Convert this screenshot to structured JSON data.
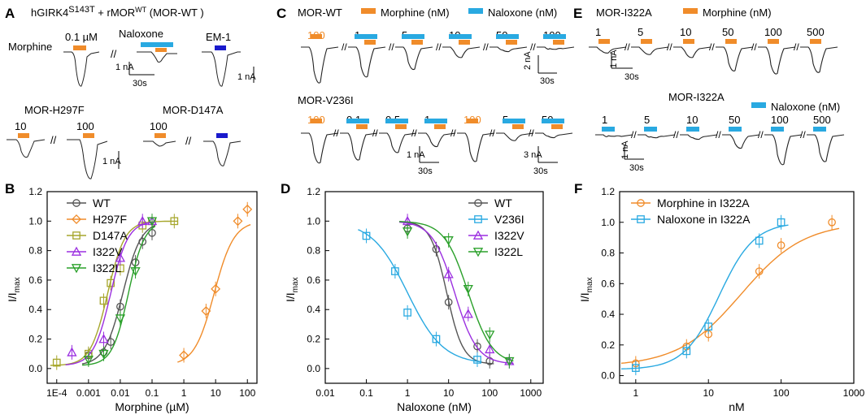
{
  "colors": {
    "orange": "#f08c2a",
    "blue": "#29a9e1",
    "darkblue": "#1a1acc",
    "gray": "#555555",
    "olive": "#a6a62b",
    "purple": "#9b2fe0",
    "green": "#2aa02a",
    "trace": "#222222"
  },
  "panel_a": {
    "letter": "A",
    "title_main": "hGIRK4",
    "title_sup1": "S143T",
    "title_mid": " + rMOR",
    "title_sup2": "WT",
    "title_end": "  (MOR-WT )",
    "morphine": "Morphine",
    "conc_morphine": "0.1 µM",
    "naloxone": "Naloxone",
    "em1": "EM-1",
    "scale_i": "1 nA",
    "scale_t": "30s",
    "scale_i2": "1 nA",
    "h297f": "MOR-H297F",
    "h297f_c1": "10",
    "h297f_c2": "100",
    "d147a": "MOR-D147A",
    "d147a_c1": "100",
    "scale_i3": "1 nA",
    "breaks": "//"
  },
  "panel_c": {
    "letter": "C",
    "wt": "MOR-WT",
    "morphine_legend": "Morphine (nM)",
    "naloxone_legend": "Naloxone (nM)",
    "wt_concs": [
      "100",
      "1",
      "5",
      "10",
      "50",
      "100"
    ],
    "scale_i": "2 nA",
    "scale_t": "30s",
    "v236i": "MOR-V236I",
    "v_concs": [
      "100",
      "0.1",
      "0.5",
      "1",
      "100",
      "5",
      "50"
    ],
    "scale_i2": "1 nA",
    "scale_t2": "30s",
    "scale_i3": "3 nA",
    "scale_t3": "30s"
  },
  "panel_e": {
    "letter": "E",
    "i322a": "MOR-I322A",
    "morphine_legend": "Morphine (nM)",
    "m_concs": [
      "1",
      "5",
      "10",
      "50",
      "100",
      "500"
    ],
    "scale_i": "1 nA",
    "scale_t": "30s",
    "i322a_2": "MOR-I322A",
    "naloxone_legend": "Naloxone (nM)",
    "n_concs": [
      "1",
      "5",
      "10",
      "50",
      "100",
      "500"
    ],
    "scale_i2": "1 nA",
    "scale_t2": "30s"
  },
  "chart_data": [
    {
      "panel": "B",
      "type": "scatter",
      "xscale": "log",
      "xlabel": "Morphine (µM)",
      "ylabel_main": "I/I",
      "ylabel_sub": "max",
      "xlim": [
        5e-05,
        200
      ],
      "ylim": [
        -0.1,
        1.2
      ],
      "xticks": [
        "1E-4",
        "0.001",
        "0.01",
        "0.1",
        "1",
        "10",
        "100"
      ],
      "yticks": [
        "0.0",
        "0.2",
        "0.4",
        "0.6",
        "0.8",
        "1.0",
        "1.2"
      ],
      "series": [
        {
          "name": "WT",
          "marker": "circle",
          "color": "gray",
          "x": [
            0.001,
            0.003,
            0.005,
            0.01,
            0.03,
            0.05,
            0.1
          ],
          "y": [
            0.09,
            0.11,
            0.18,
            0.42,
            0.72,
            0.86,
            0.92
          ],
          "ec50": 0.012,
          "hill": 1.5
        },
        {
          "name": "H297F",
          "marker": "diamond",
          "color": "orange",
          "x": [
            1,
            5,
            10,
            50,
            100
          ],
          "y": [
            0.09,
            0.39,
            0.54,
            1.0,
            1.08
          ],
          "ec50": 9,
          "hill": 1.4
        },
        {
          "name": "D147A",
          "marker": "square",
          "color": "olive",
          "x": [
            0.0001,
            0.001,
            0.003,
            0.005,
            0.01,
            0.05,
            0.1,
            0.5
          ],
          "y": [
            0.04,
            0.1,
            0.46,
            0.58,
            0.68,
            0.97,
            1.0,
            1.0
          ],
          "ec50": 0.004,
          "hill": 1.6
        },
        {
          "name": "I322V",
          "marker": "triangle-up",
          "color": "purple",
          "x": [
            0.0003,
            0.003,
            0.01,
            0.05,
            0.1
          ],
          "y": [
            0.11,
            0.2,
            0.75,
            1.0,
            1.0
          ],
          "ec50": 0.005,
          "hill": 1.6
        },
        {
          "name": "I322L",
          "marker": "triangle-down",
          "color": "green",
          "x": [
            0.001,
            0.003,
            0.01,
            0.03,
            0.1
          ],
          "y": [
            0.06,
            0.1,
            0.34,
            0.66,
            1.0
          ],
          "ec50": 0.018,
          "hill": 1.7
        }
      ]
    },
    {
      "panel": "D",
      "type": "scatter",
      "xscale": "log",
      "xlabel": "Naloxone (nM)",
      "ylabel_main": "I/I",
      "ylabel_sub": "max",
      "xlim": [
        0.01,
        2000
      ],
      "ylim": [
        -0.1,
        1.2
      ],
      "xticks": [
        "0.01",
        "0.1",
        "1",
        "10",
        "100",
        "1000"
      ],
      "yticks": [
        "0.0",
        "0.2",
        "0.4",
        "0.6",
        "0.8",
        "1.0",
        "1.2"
      ],
      "series": [
        {
          "name": "WT",
          "marker": "circle",
          "color": "gray",
          "x": [
            1,
            5,
            10,
            50,
            100
          ],
          "y": [
            0.95,
            0.81,
            0.45,
            0.15,
            0.05
          ],
          "ic50": 9,
          "hill": 2.2
        },
        {
          "name": "V236I",
          "marker": "square",
          "color": "blue",
          "x": [
            0.1,
            0.5,
            1,
            5,
            50
          ],
          "y": [
            0.9,
            0.66,
            0.38,
            0.2,
            0.06
          ],
          "ic50": 1.0,
          "hill": 1.0
        },
        {
          "name": "I322V",
          "marker": "triangle-up",
          "color": "purple",
          "x": [
            1,
            10,
            30,
            100,
            300
          ],
          "y": [
            1.0,
            0.64,
            0.37,
            0.13,
            0.05
          ],
          "ic50": 14,
          "hill": 1.6
        },
        {
          "name": "I322L",
          "marker": "triangle-down",
          "color": "green",
          "x": [
            1,
            10,
            30,
            100,
            300
          ],
          "y": [
            0.93,
            0.87,
            0.54,
            0.23,
            0.05
          ],
          "ic50": 30,
          "hill": 1.5
        }
      ]
    },
    {
      "panel": "F",
      "type": "scatter",
      "xscale": "log",
      "xlabel": "nM",
      "ylabel_main": "I/I",
      "ylabel_sub": "max",
      "xlim": [
        0.6,
        1000
      ],
      "ylim": [
        -0.05,
        1.2
      ],
      "xticks": [
        "1",
        "10",
        "100",
        "1000"
      ],
      "yticks": [
        "0.0",
        "0.2",
        "0.4",
        "0.6",
        "0.8",
        "1.0",
        "1.2"
      ],
      "series": [
        {
          "name": "Morphine in I322A",
          "marker": "circle",
          "color": "orange",
          "x": [
            1,
            5,
            10,
            50,
            100,
            500
          ],
          "y": [
            0.08,
            0.19,
            0.27,
            0.68,
            0.85,
            1.0
          ],
          "ec50": 28,
          "hill": 1.0,
          "bottom": 0.06
        },
        {
          "name": "Naloxone in I322A",
          "marker": "square",
          "color": "blue",
          "x": [
            1,
            5,
            10,
            50,
            100
          ],
          "y": [
            0.05,
            0.16,
            0.32,
            0.88,
            1.0
          ],
          "ec50": 14,
          "hill": 1.8,
          "bottom": 0.04
        }
      ]
    }
  ]
}
